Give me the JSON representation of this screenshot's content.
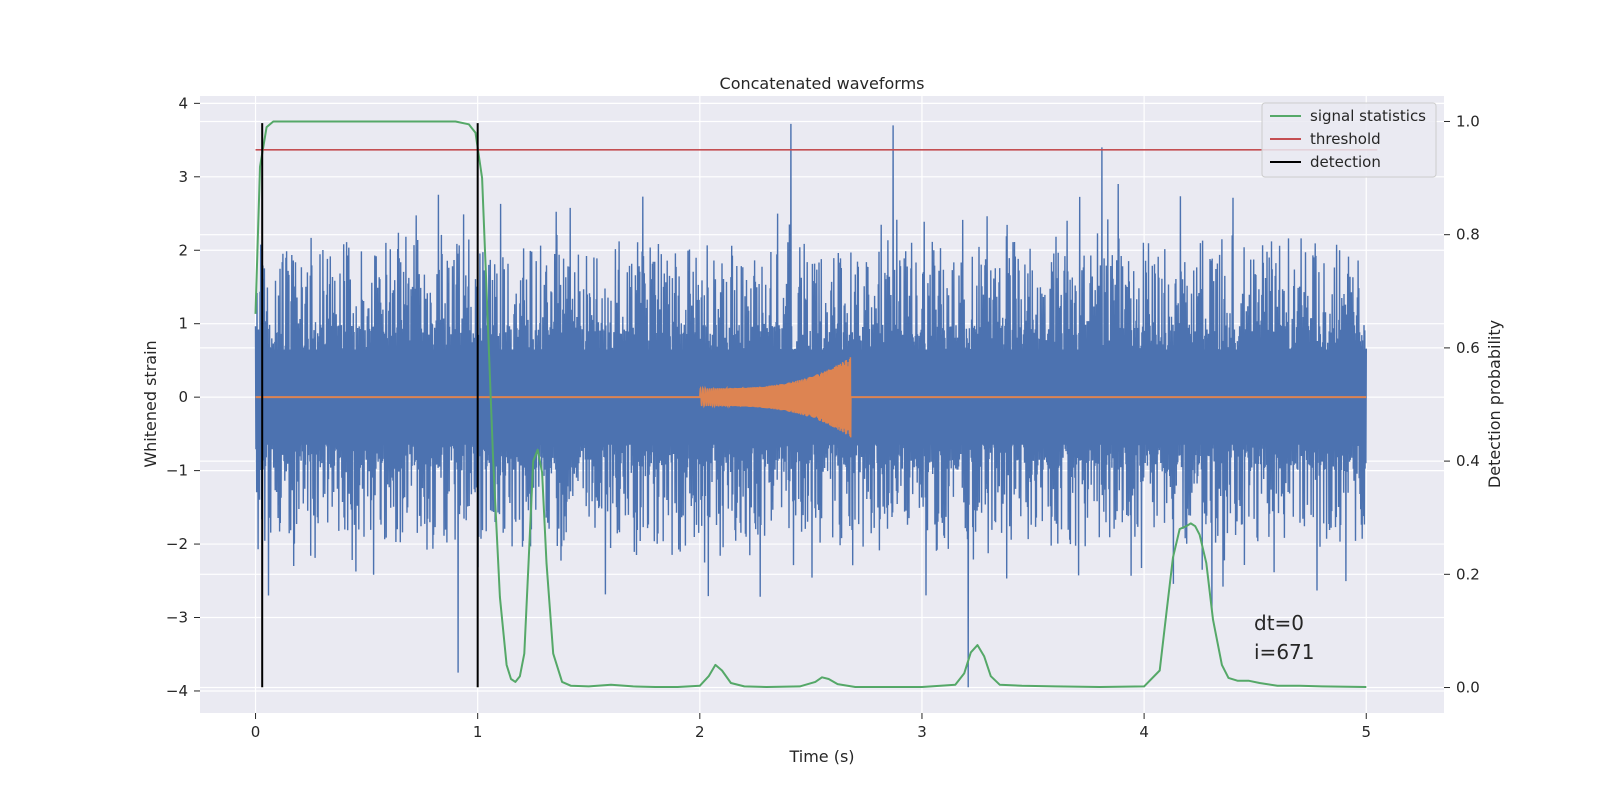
{
  "chart_data": {
    "type": "line",
    "title": "Concatenated waveforms",
    "xlabel": "Time (s)",
    "ylabel": "Whitened strain",
    "y2label": "Detection probability",
    "xlim": [
      -0.25,
      5.35
    ],
    "ylim": [
      -4.3,
      4.1
    ],
    "y2lim": [
      -0.045,
      1.045
    ],
    "xticks": [
      0,
      1,
      2,
      3,
      4,
      5
    ],
    "yticks": [
      -4,
      -3,
      -2,
      -1,
      0,
      1,
      2,
      3,
      4
    ],
    "y2ticks": [
      0.0,
      0.2,
      0.4,
      0.6,
      0.8,
      1.0
    ],
    "xtick_labels": [
      "0",
      "1",
      "2",
      "3",
      "4",
      "5"
    ],
    "ytick_labels": [
      "−4",
      "−3",
      "−2",
      "−1",
      "0",
      "1",
      "2",
      "3",
      "4"
    ],
    "y2tick_labels": [
      "0.0",
      "0.2",
      "0.4",
      "0.6",
      "0.8",
      "1.0"
    ],
    "grid": true,
    "legend_position": "top-right",
    "colors": {
      "strain": "#4c72b0",
      "template": "#dd8452",
      "signal_statistics": "#55a868",
      "threshold": "#c44e52",
      "detection": "#000000",
      "background": "#eaeaf2",
      "grid": "#ffffff"
    },
    "series": [
      {
        "name": "strain",
        "axis": "left",
        "note_range": [
          0,
          5
        ],
        "typical_band": [
          -0.9,
          0.9
        ],
        "notable_peaks": [
          {
            "x": 0.06,
            "y": -2.7
          },
          {
            "x": 2.41,
            "y": 3.72
          },
          {
            "x": 2.87,
            "y": 3.7
          },
          {
            "x": 3.21,
            "y": -3.95
          },
          {
            "x": 3.81,
            "y": 3.4
          },
          {
            "x": 0.91,
            "y": -3.75
          }
        ]
      },
      {
        "name": "template",
        "axis": "left",
        "x_start": 2.0,
        "x_end": 2.68,
        "amp_start": 0.12,
        "amp_end": 0.55
      },
      {
        "name": "signal statistics",
        "axis": "right",
        "x": [
          0.0,
          0.02,
          0.05,
          0.08,
          0.12,
          0.2,
          0.5,
          0.9,
          0.96,
          0.99,
          1.02,
          1.04,
          1.07,
          1.1,
          1.13,
          1.15,
          1.17,
          1.19,
          1.21,
          1.23,
          1.25,
          1.27,
          1.29,
          1.31,
          1.34,
          1.38,
          1.42,
          1.5,
          1.6,
          1.7,
          1.8,
          1.9,
          2.0,
          2.04,
          2.07,
          2.1,
          2.14,
          2.2,
          2.3,
          2.45,
          2.52,
          2.55,
          2.58,
          2.62,
          2.7,
          2.8,
          3.0,
          3.15,
          3.19,
          3.22,
          3.25,
          3.28,
          3.31,
          3.35,
          3.45,
          3.6,
          3.8,
          4.0,
          4.07,
          4.1,
          4.13,
          4.16,
          4.19,
          4.21,
          4.23,
          4.25,
          4.28,
          4.31,
          4.35,
          4.38,
          4.42,
          4.47,
          4.52,
          4.6,
          4.7,
          4.8,
          5.0
        ],
        "values": [
          0.66,
          0.92,
          0.99,
          1.0,
          1.0,
          1.0,
          1.0,
          1.0,
          0.995,
          0.98,
          0.9,
          0.7,
          0.4,
          0.16,
          0.04,
          0.015,
          0.01,
          0.02,
          0.06,
          0.23,
          0.4,
          0.42,
          0.38,
          0.22,
          0.06,
          0.01,
          0.003,
          0.002,
          0.005,
          0.002,
          0.001,
          0.001,
          0.003,
          0.02,
          0.04,
          0.03,
          0.008,
          0.002,
          0.001,
          0.002,
          0.01,
          0.018,
          0.015,
          0.006,
          0.001,
          0.001,
          0.001,
          0.005,
          0.025,
          0.062,
          0.075,
          0.055,
          0.02,
          0.005,
          0.003,
          0.002,
          0.001,
          0.002,
          0.03,
          0.13,
          0.23,
          0.28,
          0.285,
          0.29,
          0.285,
          0.27,
          0.22,
          0.12,
          0.04,
          0.017,
          0.012,
          0.012,
          0.008,
          0.003,
          0.003,
          0.002,
          0.001
        ]
      },
      {
        "name": "threshold",
        "axis": "right",
        "x": [
          0,
          5.05
        ],
        "values": [
          0.95,
          0.95
        ]
      },
      {
        "name": "detection",
        "axis": "left",
        "x_positions": [
          0.03,
          1.0
        ],
        "y_range": [
          -3.95,
          3.73
        ]
      }
    ],
    "legend": [
      "signal statistics",
      "threshold",
      "detection"
    ],
    "annotations": [
      "dt=0",
      "i=671"
    ]
  }
}
